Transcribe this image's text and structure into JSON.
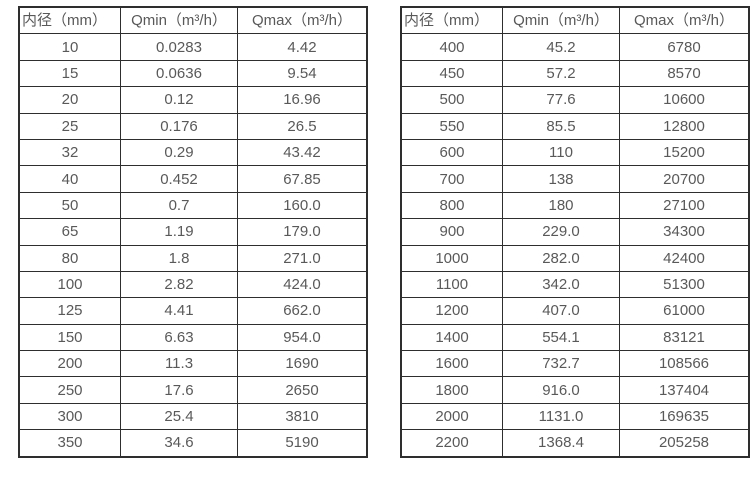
{
  "tables": [
    {
      "name": "flow-table-small-diameters",
      "headers": [
        "内径（mm）",
        "Qmin（m³/h）",
        "Qmax（m³/h）"
      ],
      "rows": [
        [
          "10",
          "0.0283",
          "4.42"
        ],
        [
          "15",
          "0.0636",
          "9.54"
        ],
        [
          "20",
          "0.12",
          "16.96"
        ],
        [
          "25",
          "0.176",
          "26.5"
        ],
        [
          "32",
          "0.29",
          "43.42"
        ],
        [
          "40",
          "0.452",
          "67.85"
        ],
        [
          "50",
          "0.7",
          "160.0"
        ],
        [
          "65",
          "1.19",
          "179.0"
        ],
        [
          "80",
          "1.8",
          "271.0"
        ],
        [
          "100",
          "2.82",
          "424.0"
        ],
        [
          "125",
          "4.41",
          "662.0"
        ],
        [
          "150",
          "6.63",
          "954.0"
        ],
        [
          "200",
          "11.3",
          "1690"
        ],
        [
          "250",
          "17.6",
          "2650"
        ],
        [
          "300",
          "25.4",
          "3810"
        ],
        [
          "350",
          "34.6",
          "5190"
        ]
      ]
    },
    {
      "name": "flow-table-large-diameters",
      "headers": [
        "内径（mm）",
        "Qmin（m³/h）",
        "Qmax（m³/h）"
      ],
      "rows": [
        [
          "400",
          "45.2",
          "6780"
        ],
        [
          "450",
          "57.2",
          "8570"
        ],
        [
          "500",
          "77.6",
          "10600"
        ],
        [
          "550",
          "85.5",
          "12800"
        ],
        [
          "600",
          "110",
          "15200"
        ],
        [
          "700",
          "138",
          "20700"
        ],
        [
          "800",
          "180",
          "27100"
        ],
        [
          "900",
          "229.0",
          "34300"
        ],
        [
          "1000",
          "282.0",
          "42400"
        ],
        [
          "1100",
          "342.0",
          "51300"
        ],
        [
          "1200",
          "407.0",
          "61000"
        ],
        [
          "1400",
          "554.1",
          "83121"
        ],
        [
          "1600",
          "732.7",
          "108566"
        ],
        [
          "1800",
          "916.0",
          "137404"
        ],
        [
          "2000",
          "1131.0",
          "169635"
        ],
        [
          "2200",
          "1368.4",
          "205258"
        ]
      ]
    }
  ],
  "colors": {
    "background": "#ffffff",
    "text": "#595959",
    "border": "#2e2e2e"
  }
}
